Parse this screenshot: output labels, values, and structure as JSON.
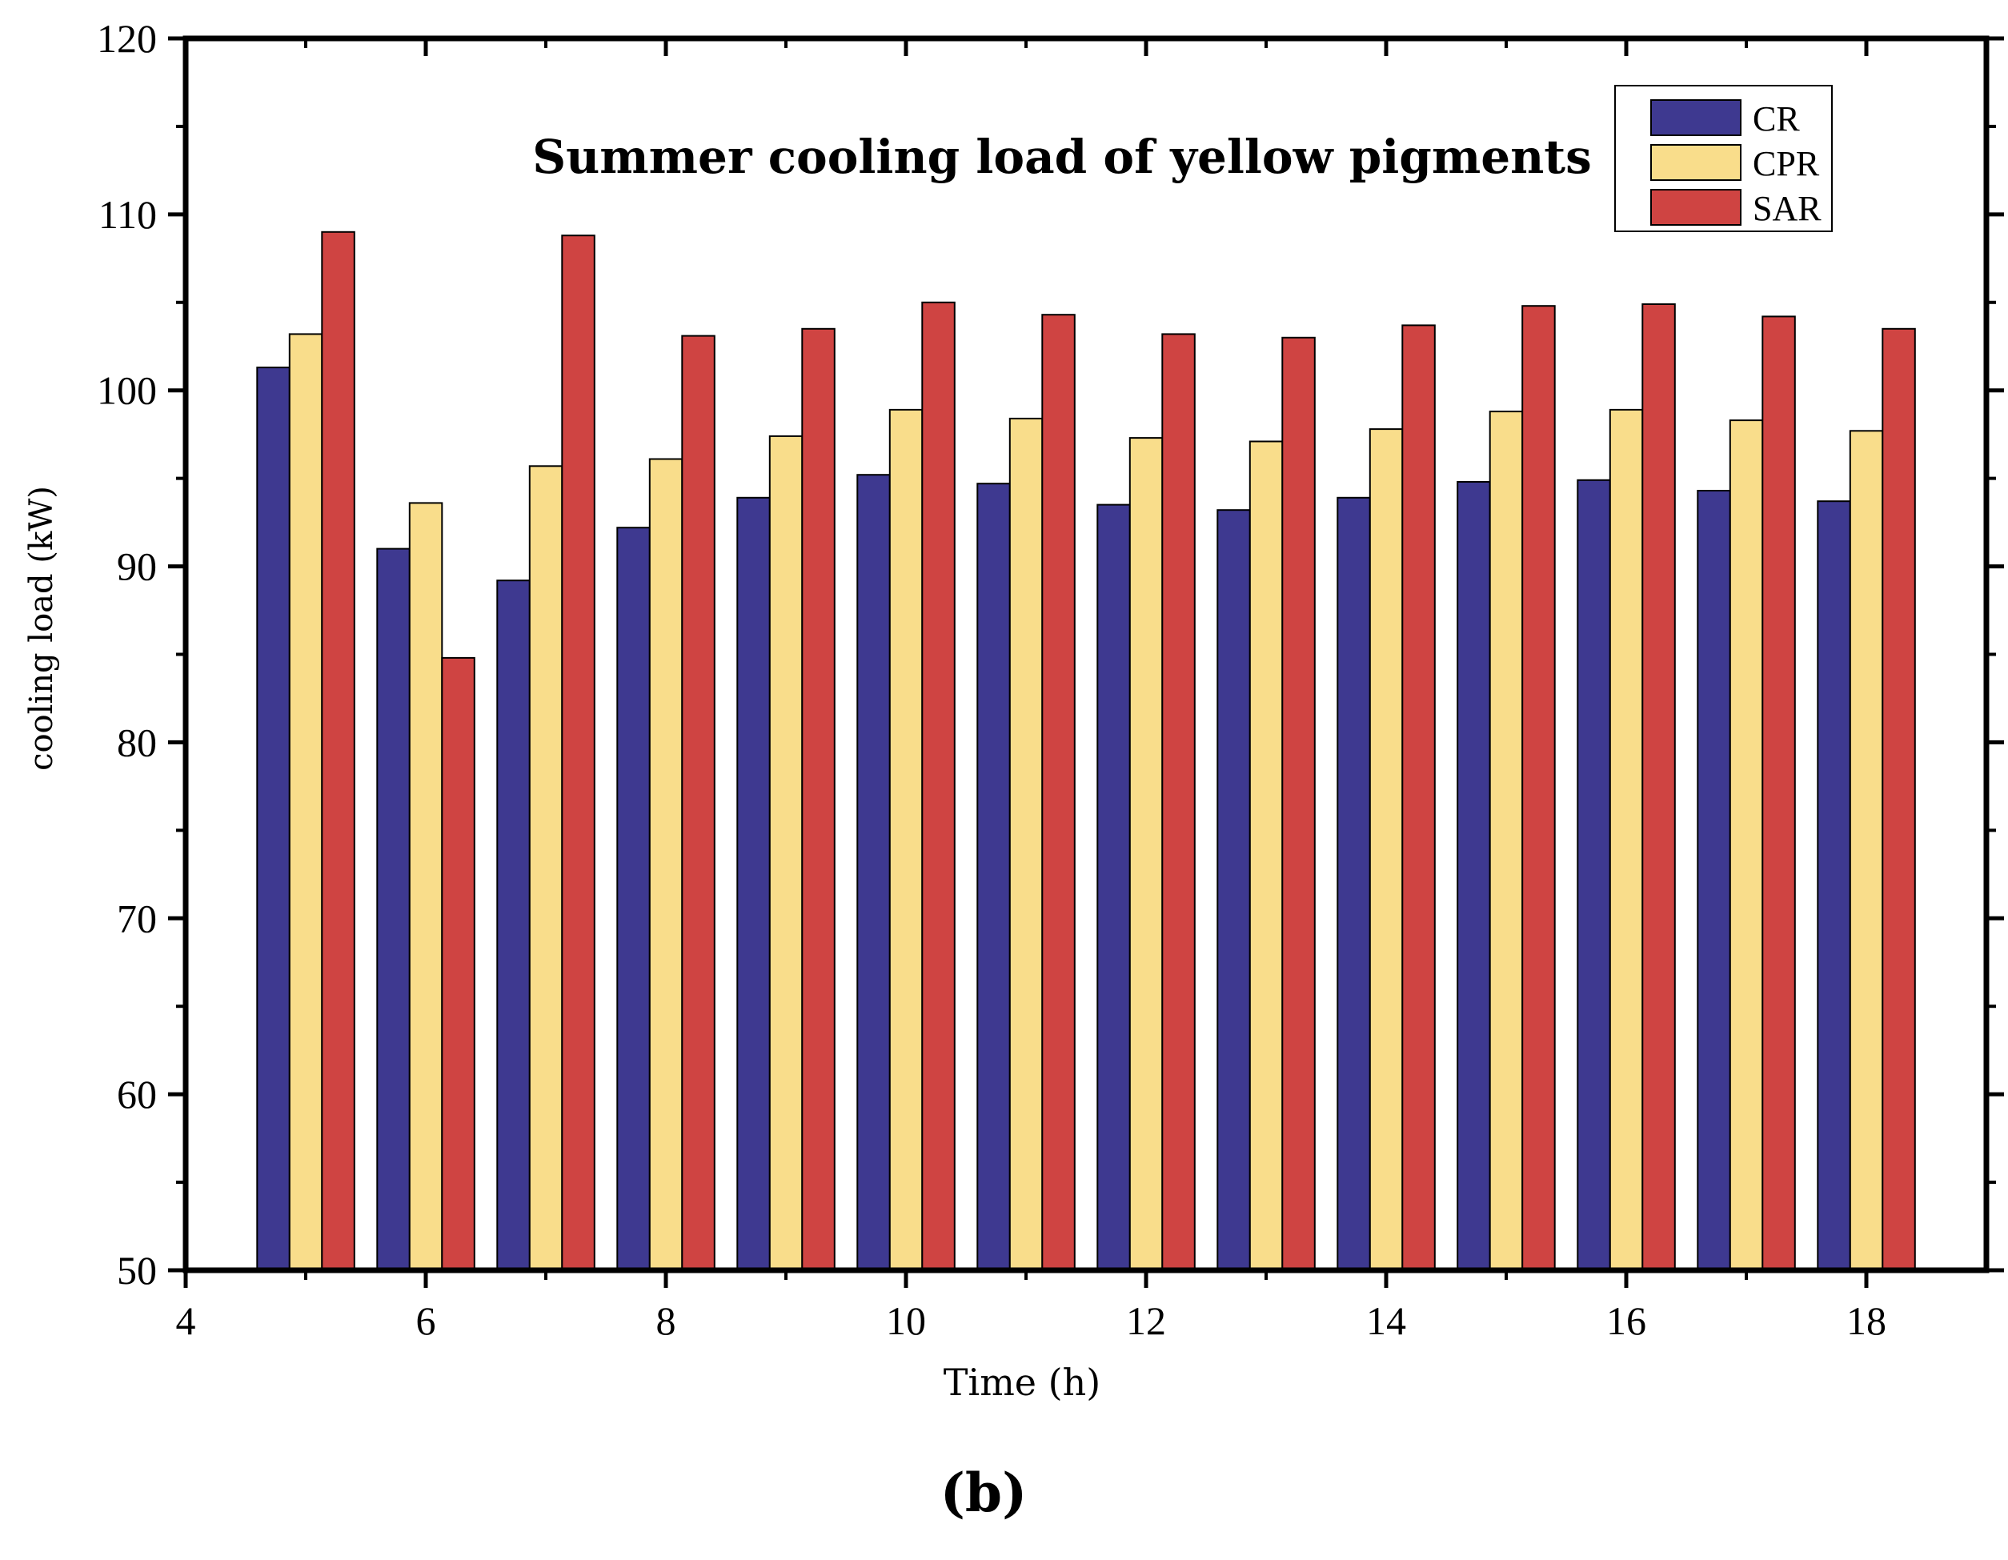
{
  "chart_data": {
    "type": "bar",
    "title": "Summer cooling load of yellow pigments",
    "xlabel": "Time (h)",
    "ylabel": "cooling load (kW)",
    "panel_label": "(b)",
    "xlim": [
      4,
      19
    ],
    "ylim": [
      50,
      120
    ],
    "x_ticks": [
      4,
      6,
      8,
      10,
      12,
      14,
      16,
      18
    ],
    "y_ticks": [
      50,
      60,
      70,
      80,
      90,
      100,
      110,
      120
    ],
    "x": [
      5,
      6,
      7,
      8,
      9,
      10,
      11,
      12,
      13,
      14,
      15,
      16,
      17,
      18
    ],
    "legend_position": "top-right",
    "series": [
      {
        "name": "CR",
        "color": "#3e3990",
        "values": [
          101.3,
          91.0,
          89.2,
          92.2,
          93.9,
          95.2,
          94.7,
          93.5,
          93.2,
          93.9,
          94.8,
          94.9,
          94.3,
          93.7
        ]
      },
      {
        "name": "CPR",
        "color": "#f9dd8b",
        "values": [
          103.2,
          93.6,
          95.7,
          96.1,
          97.4,
          98.9,
          98.4,
          97.3,
          97.1,
          97.8,
          98.8,
          98.9,
          98.3,
          97.7
        ]
      },
      {
        "name": "SAR",
        "color": "#cf4442",
        "values": [
          109.0,
          84.8,
          108.8,
          103.1,
          103.5,
          105.0,
          104.3,
          103.2,
          103.0,
          103.7,
          104.8,
          104.9,
          104.2,
          103.5
        ]
      }
    ]
  }
}
